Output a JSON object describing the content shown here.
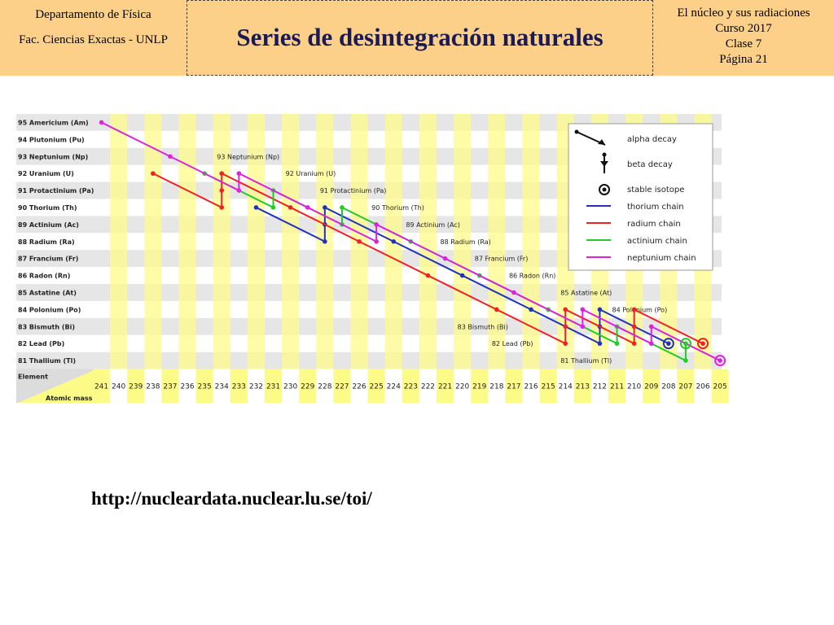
{
  "header": {
    "left": [
      "Departamento de Física",
      "Fac. Ciencias Exactas - UNLP"
    ],
    "title": "Series de desintegración naturales",
    "right": [
      "El núcleo y sus radiaciones",
      "Curso 2017",
      "Clase 7",
      "Página 21"
    ]
  },
  "chart_data": {
    "type": "line",
    "corner_labels": [
      "Element",
      "Atomic mass"
    ],
    "x": [
      241,
      240,
      239,
      238,
      237,
      236,
      235,
      234,
      233,
      232,
      231,
      230,
      229,
      228,
      227,
      226,
      225,
      224,
      223,
      222,
      221,
      220,
      219,
      218,
      217,
      216,
      215,
      214,
      213,
      212,
      211,
      210,
      209,
      208,
      207,
      206,
      205
    ],
    "y_labels": [
      "95 Americium (Am)",
      "94 Plutonium (Pu)",
      "93 Neptunium (Np)",
      "92 Uranium (U)",
      "91 Protactinium (Pa)",
      "90 Thorium (Th)",
      "89 Actinium (Ac)",
      "88 Radium (Ra)",
      "87 Francium (Fr)",
      "86 Radon (Rn)",
      "85 Astatine (At)",
      "84 Polonium (Po)",
      "83 Bismuth (Bi)",
      "82 Lead (Pb)",
      "81 Thallium (Tl)"
    ],
    "y_z": [
      95,
      94,
      93,
      92,
      91,
      90,
      89,
      88,
      87,
      86,
      85,
      84,
      83,
      82,
      81
    ],
    "annotations": [
      {
        "text": "93 Neptunium (Np)",
        "A": 234,
        "Z": 93
      },
      {
        "text": "92 Uranium (U)",
        "A": 230,
        "Z": 92
      },
      {
        "text": "91 Protactinium (Pa)",
        "A": 228,
        "Z": 91
      },
      {
        "text": "90 Thorium (Th)",
        "A": 225,
        "Z": 90
      },
      {
        "text": "89 Actinium (Ac)",
        "A": 223,
        "Z": 89
      },
      {
        "text": "88 Radium (Ra)",
        "A": 221,
        "Z": 88
      },
      {
        "text": "87 Francium (Fr)",
        "A": 219,
        "Z": 87
      },
      {
        "text": "86 Radon (Rn)",
        "A": 217,
        "Z": 86
      },
      {
        "text": "85 Astatine (At)",
        "A": 214,
        "Z": 85
      },
      {
        "text": "84 Polonium (Po)",
        "A": 211,
        "Z": 84
      },
      {
        "text": "83 Bismuth (Bi)",
        "A": 220,
        "Z": 83
      },
      {
        "text": "82 Lead (Pb)",
        "A": 218,
        "Z": 82
      },
      {
        "text": "81 Thallium (Tl)",
        "A": 214,
        "Z": 81
      }
    ],
    "legend": {
      "position": "top-right",
      "items": [
        {
          "label": "alpha decay",
          "icon": "alpha-decay-icon"
        },
        {
          "label": "beta decay",
          "icon": "beta-decay-icon"
        },
        {
          "label": "stable isotope",
          "icon": "stable-isotope-icon"
        },
        {
          "label": "thorium chain",
          "color": "#2233bb"
        },
        {
          "label": "radium chain",
          "color": "#ee2222"
        },
        {
          "label": "actinium chain",
          "color": "#22cc22"
        },
        {
          "label": "neptunium chain",
          "color": "#dd22dd"
        }
      ]
    },
    "series": [
      {
        "color": "#2233bb",
        "points": [
          [
            232,
            90
          ],
          [
            228,
            88
          ],
          [
            228,
            89
          ],
          [
            228,
            90
          ],
          [
            224,
            88
          ],
          [
            220,
            86
          ],
          [
            216,
            84
          ],
          [
            212,
            82
          ],
          [
            212,
            83
          ],
          [
            212,
            84
          ],
          [
            208,
            82
          ]
        ]
      },
      {
        "color": "#ee2222",
        "points": [
          [
            238,
            92
          ],
          [
            234,
            90
          ],
          [
            234,
            91
          ],
          [
            234,
            92
          ],
          [
            230,
            90
          ],
          [
            226,
            88
          ],
          [
            222,
            86
          ],
          [
            218,
            84
          ],
          [
            214,
            82
          ],
          [
            214,
            83
          ],
          [
            214,
            84
          ],
          [
            210,
            82
          ],
          [
            210,
            83
          ],
          [
            210,
            84
          ],
          [
            206,
            82
          ]
        ]
      },
      {
        "color": "#22cc22",
        "points": [
          [
            235,
            92
          ],
          [
            231,
            90
          ],
          [
            231,
            91
          ],
          [
            227,
            89
          ],
          [
            227,
            90
          ],
          [
            223,
            88
          ],
          [
            219,
            86
          ],
          [
            215,
            84
          ],
          [
            211,
            82
          ],
          [
            211,
            83
          ],
          [
            207,
            81
          ],
          [
            207,
            82
          ]
        ]
      },
      {
        "color": "#dd22dd",
        "points": [
          [
            241,
            95
          ],
          [
            237,
            93
          ],
          [
            233,
            91
          ],
          [
            233,
            92
          ],
          [
            229,
            90
          ],
          [
            225,
            88
          ],
          [
            225,
            89
          ],
          [
            221,
            87
          ],
          [
            217,
            85
          ],
          [
            213,
            83
          ],
          [
            213,
            84
          ],
          [
            209,
            82
          ],
          [
            209,
            83
          ],
          [
            205,
            81
          ]
        ]
      }
    ],
    "stable_isotopes": [
      {
        "A": 208,
        "Z": 82,
        "color": "#2233bb"
      },
      {
        "A": 206,
        "Z": 82,
        "color": "#ee2222"
      },
      {
        "A": 207,
        "Z": 82,
        "color": "#22cc22"
      },
      {
        "A": 205,
        "Z": 81,
        "color": "#dd22dd"
      }
    ]
  },
  "footer": {
    "url": "http://nucleardata.nuclear.lu.se/toi/"
  }
}
